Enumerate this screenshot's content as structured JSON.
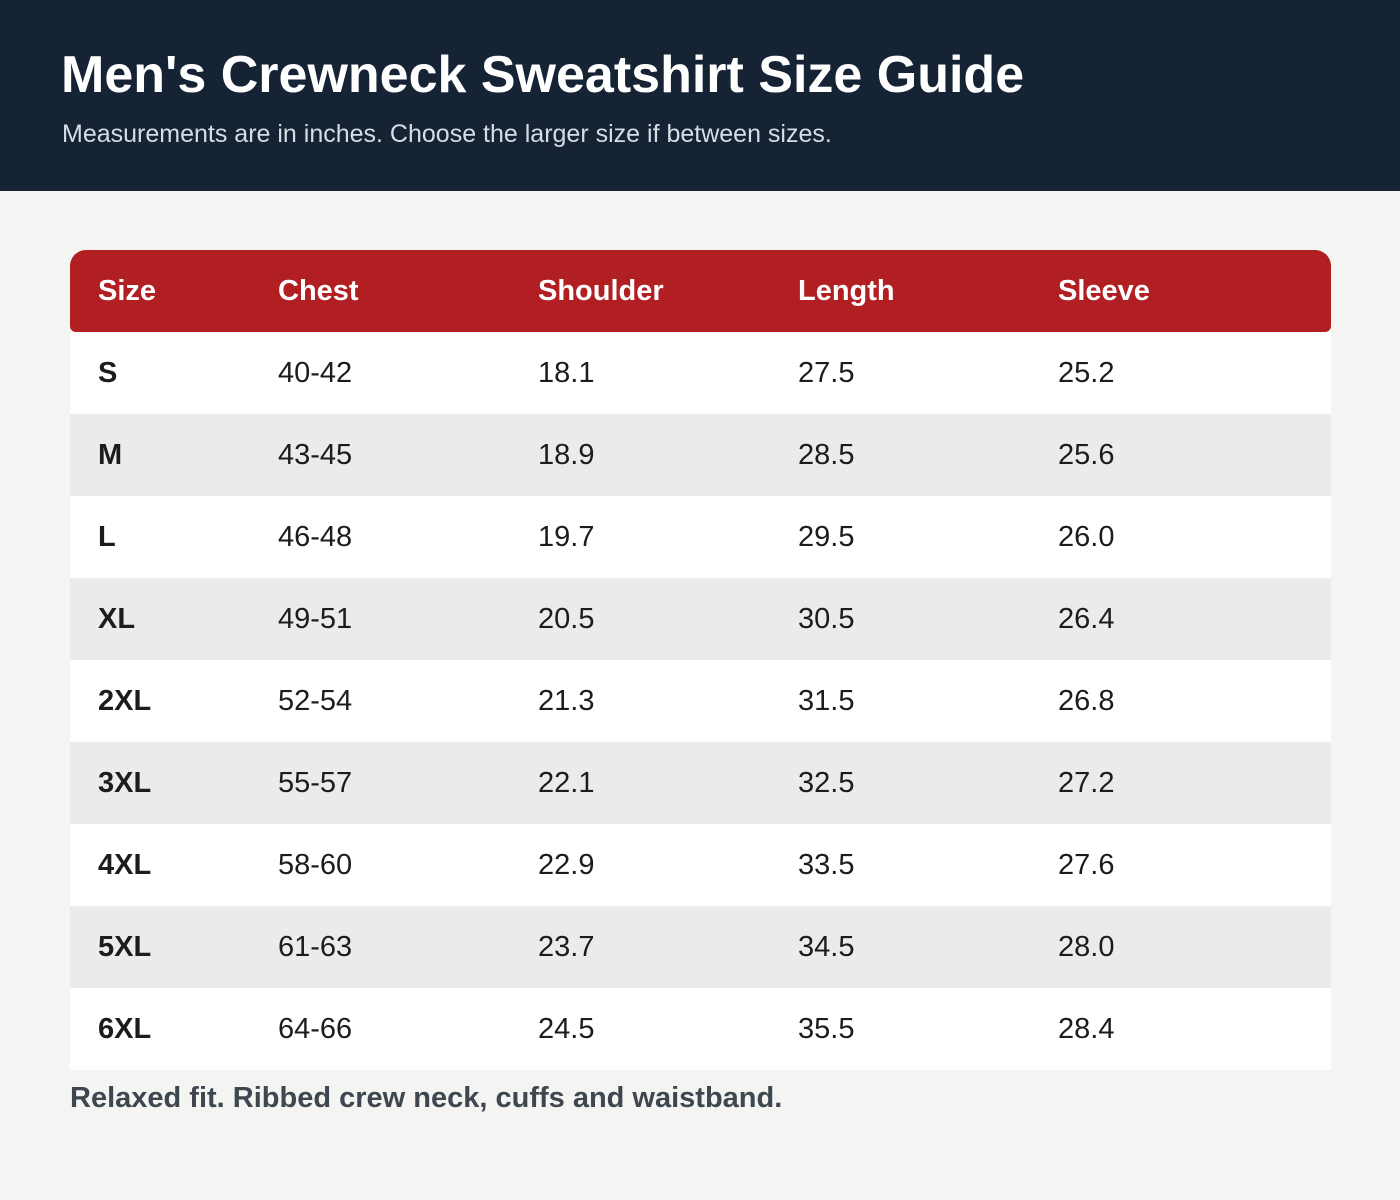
{
  "header": {
    "title": "Men's Crewneck Sweatshirt Size Guide",
    "subtitle": "Measurements are in inches. Choose the larger size if between sizes."
  },
  "table": {
    "columns": [
      "Size",
      "Chest",
      "Shoulder",
      "Length",
      "Sleeve"
    ],
    "rows": [
      [
        "S",
        "40-42",
        "18.1",
        "27.5",
        "25.2"
      ],
      [
        "M",
        "43-45",
        "18.9",
        "28.5",
        "25.6"
      ],
      [
        "L",
        "46-48",
        "19.7",
        "29.5",
        "26.0"
      ],
      [
        "XL",
        "49-51",
        "20.5",
        "30.5",
        "26.4"
      ],
      [
        "2XL",
        "52-54",
        "21.3",
        "31.5",
        "26.8"
      ],
      [
        "3XL",
        "55-57",
        "22.1",
        "32.5",
        "27.2"
      ],
      [
        "4XL",
        "58-60",
        "22.9",
        "33.5",
        "27.6"
      ],
      [
        "5XL",
        "61-63",
        "23.7",
        "34.5",
        "28.0"
      ],
      [
        "6XL",
        "64-66",
        "24.5",
        "35.5",
        "28.4"
      ]
    ]
  },
  "footnote": "Relaxed fit. Ribbed crew neck, cuffs and waistband.",
  "colors": {
    "header_bg": "#152335",
    "table_header_bg": "#b11f22",
    "row_alt_bg": "#eaece9",
    "page_bg": "#f4f4f2"
  }
}
